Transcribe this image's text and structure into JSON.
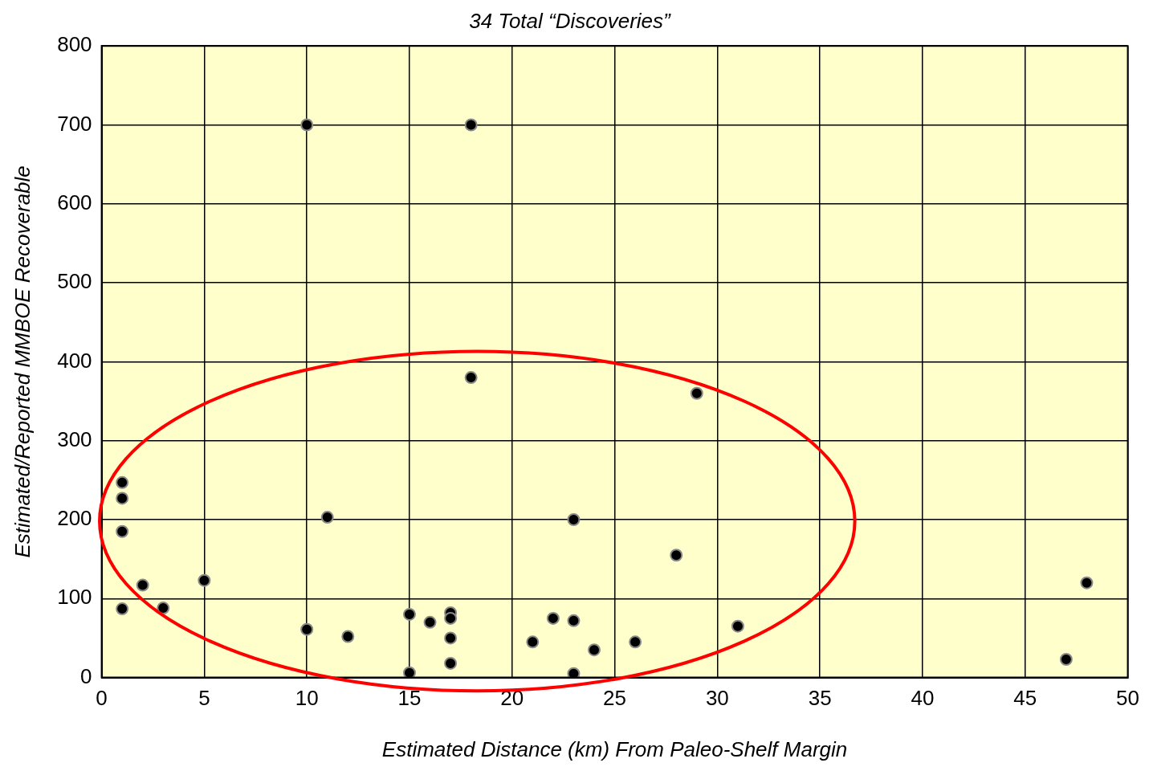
{
  "chart_data": {
    "type": "scatter",
    "title": "34 Total “Discoveries”",
    "xlabel": "Estimated Distance (km) From Paleo-Shelf Margin",
    "ylabel": "Estimated/Reported MMBOE Recoverable",
    "x": [
      10,
      18,
      18,
      29,
      1,
      1,
      1,
      11,
      23,
      28,
      2,
      5,
      1,
      3,
      48,
      10,
      12,
      15,
      15,
      16,
      17,
      17,
      17,
      17,
      21,
      22,
      23,
      23,
      24,
      26,
      31,
      47
    ],
    "series": [
      {
        "color": "#000000",
        "values": [
          700,
          700,
          380,
          360,
          247,
          227,
          185,
          203,
          200,
          155,
          117,
          123,
          87,
          88,
          120,
          61,
          52,
          80,
          6,
          70,
          82,
          75,
          50,
          18,
          45,
          75,
          72,
          5,
          35,
          45,
          65,
          23
        ]
      }
    ],
    "xlim": [
      0,
      50
    ],
    "xticks": [
      0,
      5,
      10,
      15,
      20,
      25,
      30,
      35,
      40,
      45,
      50
    ],
    "ylim": [
      0,
      800
    ],
    "yticks": [
      0,
      100,
      200,
      300,
      400,
      500,
      600,
      700,
      800
    ],
    "grid": true,
    "legend": false,
    "marker": "circle"
  }
}
